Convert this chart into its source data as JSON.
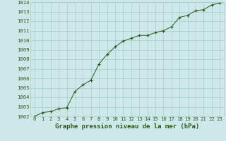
{
  "x": [
    0,
    1,
    2,
    3,
    4,
    5,
    6,
    7,
    8,
    9,
    10,
    11,
    12,
    13,
    14,
    15,
    16,
    17,
    18,
    19,
    20,
    21,
    22,
    23
  ],
  "y": [
    1002.0,
    1002.4,
    1002.5,
    1002.8,
    1002.9,
    1004.6,
    1005.3,
    1005.8,
    1007.5,
    1008.5,
    1009.3,
    1009.9,
    1010.2,
    1010.5,
    1010.5,
    1010.8,
    1011.0,
    1011.4,
    1012.4,
    1012.6,
    1013.1,
    1013.2,
    1013.7,
    1013.9
  ],
  "xlim": [
    -0.5,
    23.5
  ],
  "ylim": [
    1002,
    1014
  ],
  "yticks": [
    1002,
    1003,
    1004,
    1005,
    1006,
    1007,
    1008,
    1009,
    1010,
    1011,
    1012,
    1013,
    1014
  ],
  "xticks": [
    0,
    1,
    2,
    3,
    4,
    5,
    6,
    7,
    8,
    9,
    10,
    11,
    12,
    13,
    14,
    15,
    16,
    17,
    18,
    19,
    20,
    21,
    22,
    23
  ],
  "xlabel": "Graphe pression niveau de la mer (hPa)",
  "line_color": "#2d5a1b",
  "marker": "+",
  "bg_color": "#cce8e8",
  "grid_color": "#aacccc",
  "tick_label_color": "#2d5a1b",
  "tick_label_fontsize": 5.2,
  "xlabel_fontsize": 6.5,
  "xlabel_color": "#2d5a1b"
}
